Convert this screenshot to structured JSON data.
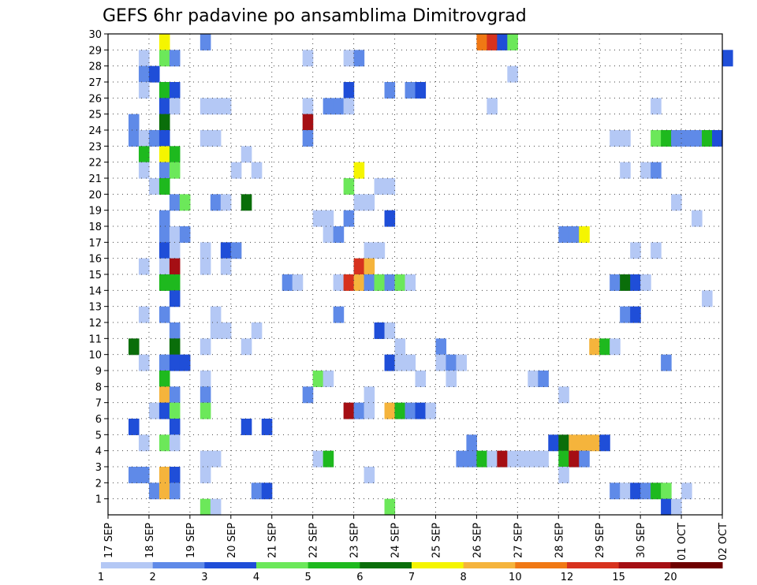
{
  "chart_data": {
    "type": "heatmap",
    "title": "GEFS 6hr padavine po ansamblima Dimitrovgrad",
    "xlabel": "",
    "ylabel": "",
    "x_ticks": [
      "17 SEP",
      "18 SEP",
      "19 SEP",
      "20 SEP",
      "21 SEP",
      "22 SEP",
      "23 SEP",
      "24 SEP",
      "25 SEP",
      "26 SEP",
      "27 SEP",
      "28 SEP",
      "29 SEP",
      "30 SEP",
      "01 OCT",
      "02 OCT"
    ],
    "y_ticks": [
      "1",
      "2",
      "3",
      "4",
      "5",
      "6",
      "7",
      "8",
      "9",
      "10",
      "11",
      "12",
      "13",
      "14",
      "15",
      "16",
      "17",
      "18",
      "19",
      "20",
      "21",
      "22",
      "23",
      "24",
      "25",
      "26",
      "27",
      "28",
      "29",
      "30"
    ],
    "x_range_steps": [
      0,
      60
    ],
    "y_range_members": [
      0,
      30
    ],
    "grid": true,
    "colorbar": {
      "labels": [
        "1",
        "2",
        "3",
        "4",
        "5",
        "6",
        "7",
        "8",
        "10",
        "12",
        "15",
        "20"
      ],
      "colors": [
        "#b4c8f5",
        "#5f8ae8",
        "#1f4ed8",
        "#6ce85a",
        "#1eb91e",
        "#0a6e0a",
        "#f5f500",
        "#f5b43c",
        "#f07814",
        "#d7321e",
        "#a50f14",
        "#6e0000"
      ]
    },
    "cells": [
      [
        5,
        30,
        7
      ],
      [
        9,
        30,
        2
      ],
      [
        36,
        30,
        9
      ],
      [
        37,
        30,
        10
      ],
      [
        38,
        30,
        3
      ],
      [
        39,
        30,
        4
      ],
      [
        3,
        29,
        1
      ],
      [
        5,
        29,
        4
      ],
      [
        6,
        29,
        2
      ],
      [
        19,
        29,
        1
      ],
      [
        23,
        29,
        1
      ],
      [
        24,
        29,
        2
      ],
      [
        60,
        29,
        3
      ],
      [
        3,
        28,
        2
      ],
      [
        4,
        28,
        3
      ],
      [
        39,
        28,
        1
      ],
      [
        3,
        27,
        1
      ],
      [
        5,
        27,
        5
      ],
      [
        6,
        27,
        3
      ],
      [
        23,
        27,
        3
      ],
      [
        27,
        27,
        2
      ],
      [
        29,
        27,
        2
      ],
      [
        30,
        27,
        3
      ],
      [
        5,
        26,
        3
      ],
      [
        6,
        26,
        1
      ],
      [
        9,
        26,
        1
      ],
      [
        10,
        26,
        1
      ],
      [
        11,
        26,
        1
      ],
      [
        19,
        26,
        1
      ],
      [
        21,
        26,
        2
      ],
      [
        22,
        26,
        2
      ],
      [
        23,
        26,
        1
      ],
      [
        37,
        26,
        1
      ],
      [
        53,
        26,
        1
      ],
      [
        2,
        25,
        2
      ],
      [
        5,
        25,
        6
      ],
      [
        19,
        25,
        11
      ],
      [
        2,
        24,
        2
      ],
      [
        3,
        24,
        1
      ],
      [
        4,
        24,
        2
      ],
      [
        5,
        24,
        3
      ],
      [
        9,
        24,
        1
      ],
      [
        10,
        24,
        1
      ],
      [
        19,
        24,
        2
      ],
      [
        49,
        24,
        1
      ],
      [
        50,
        24,
        1
      ],
      [
        53,
        24,
        4
      ],
      [
        54,
        24,
        5
      ],
      [
        55,
        24,
        2
      ],
      [
        56,
        24,
        2
      ],
      [
        57,
        24,
        2
      ],
      [
        58,
        24,
        5
      ],
      [
        59,
        24,
        3
      ],
      [
        3,
        23,
        5
      ],
      [
        5,
        23,
        7
      ],
      [
        6,
        23,
        5
      ],
      [
        13,
        23,
        1
      ],
      [
        3,
        22,
        1
      ],
      [
        5,
        22,
        2
      ],
      [
        6,
        22,
        4
      ],
      [
        12,
        22,
        1
      ],
      [
        14,
        22,
        1
      ],
      [
        24,
        22,
        7
      ],
      [
        50,
        22,
        1
      ],
      [
        52,
        22,
        1
      ],
      [
        53,
        22,
        2
      ],
      [
        4,
        21,
        1
      ],
      [
        5,
        21,
        5
      ],
      [
        23,
        21,
        4
      ],
      [
        26,
        21,
        1
      ],
      [
        27,
        21,
        1
      ],
      [
        6,
        20,
        2
      ],
      [
        7,
        20,
        4
      ],
      [
        10,
        20,
        2
      ],
      [
        11,
        20,
        1
      ],
      [
        13,
        20,
        6
      ],
      [
        24,
        20,
        1
      ],
      [
        25,
        20,
        1
      ],
      [
        55,
        20,
        1
      ],
      [
        5,
        19,
        2
      ],
      [
        20,
        19,
        1
      ],
      [
        21,
        19,
        1
      ],
      [
        23,
        19,
        2
      ],
      [
        27,
        19,
        3
      ],
      [
        57,
        19,
        1
      ],
      [
        5,
        18,
        2
      ],
      [
        6,
        18,
        1
      ],
      [
        7,
        18,
        2
      ],
      [
        21,
        18,
        1
      ],
      [
        22,
        18,
        2
      ],
      [
        44,
        18,
        2
      ],
      [
        45,
        18,
        2
      ],
      [
        46,
        18,
        7
      ],
      [
        5,
        17,
        3
      ],
      [
        6,
        17,
        1
      ],
      [
        9,
        17,
        1
      ],
      [
        11,
        17,
        3
      ],
      [
        12,
        17,
        2
      ],
      [
        25,
        17,
        1
      ],
      [
        26,
        17,
        1
      ],
      [
        51,
        17,
        1
      ],
      [
        53,
        17,
        1
      ],
      [
        3,
        16,
        1
      ],
      [
        5,
        16,
        1
      ],
      [
        6,
        16,
        11
      ],
      [
        9,
        16,
        1
      ],
      [
        11,
        16,
        1
      ],
      [
        24,
        16,
        10
      ],
      [
        25,
        16,
        8
      ],
      [
        5,
        15,
        5
      ],
      [
        6,
        15,
        5
      ],
      [
        17,
        15,
        2
      ],
      [
        18,
        15,
        1
      ],
      [
        22,
        15,
        1
      ],
      [
        23,
        15,
        10
      ],
      [
        24,
        15,
        8
      ],
      [
        25,
        15,
        2
      ],
      [
        26,
        15,
        4
      ],
      [
        27,
        15,
        2
      ],
      [
        28,
        15,
        4
      ],
      [
        29,
        15,
        1
      ],
      [
        49,
        15,
        2
      ],
      [
        50,
        15,
        6
      ],
      [
        51,
        15,
        3
      ],
      [
        52,
        15,
        1
      ],
      [
        6,
        14,
        3
      ],
      [
        58,
        14,
        1
      ],
      [
        3,
        13,
        1
      ],
      [
        5,
        13,
        2
      ],
      [
        10,
        13,
        1
      ],
      [
        22,
        13,
        2
      ],
      [
        50,
        13,
        2
      ],
      [
        51,
        13,
        3
      ],
      [
        6,
        12,
        2
      ],
      [
        10,
        12,
        1
      ],
      [
        11,
        12,
        1
      ],
      [
        14,
        12,
        1
      ],
      [
        26,
        12,
        3
      ],
      [
        27,
        12,
        1
      ],
      [
        2,
        11,
        6
      ],
      [
        6,
        11,
        6
      ],
      [
        9,
        11,
        1
      ],
      [
        13,
        11,
        1
      ],
      [
        28,
        11,
        1
      ],
      [
        32,
        11,
        2
      ],
      [
        47,
        11,
        8
      ],
      [
        48,
        11,
        5
      ],
      [
        49,
        11,
        1
      ],
      [
        3,
        10,
        1
      ],
      [
        5,
        10,
        2
      ],
      [
        6,
        10,
        3
      ],
      [
        7,
        10,
        3
      ],
      [
        27,
        10,
        3
      ],
      [
        28,
        10,
        1
      ],
      [
        29,
        10,
        1
      ],
      [
        32,
        10,
        1
      ],
      [
        33,
        10,
        2
      ],
      [
        34,
        10,
        1
      ],
      [
        54,
        10,
        2
      ],
      [
        5,
        9,
        5
      ],
      [
        9,
        9,
        1
      ],
      [
        20,
        9,
        4
      ],
      [
        21,
        9,
        1
      ],
      [
        30,
        9,
        1
      ],
      [
        33,
        9,
        1
      ],
      [
        41,
        9,
        1
      ],
      [
        42,
        9,
        2
      ],
      [
        5,
        8,
        8
      ],
      [
        6,
        8,
        2
      ],
      [
        9,
        8,
        2
      ],
      [
        19,
        8,
        2
      ],
      [
        25,
        8,
        1
      ],
      [
        44,
        8,
        1
      ],
      [
        4,
        7,
        1
      ],
      [
        5,
        7,
        3
      ],
      [
        6,
        7,
        4
      ],
      [
        9,
        7,
        4
      ],
      [
        23,
        7,
        11
      ],
      [
        24,
        7,
        2
      ],
      [
        25,
        7,
        1
      ],
      [
        27,
        7,
        8
      ],
      [
        28,
        7,
        5
      ],
      [
        29,
        7,
        2
      ],
      [
        30,
        7,
        3
      ],
      [
        31,
        7,
        1
      ],
      [
        2,
        6,
        3
      ],
      [
        6,
        6,
        3
      ],
      [
        13,
        6,
        3
      ],
      [
        15,
        6,
        3
      ],
      [
        3,
        5,
        1
      ],
      [
        5,
        5,
        4
      ],
      [
        6,
        5,
        1
      ],
      [
        35,
        5,
        2
      ],
      [
        43,
        5,
        3
      ],
      [
        44,
        5,
        6
      ],
      [
        45,
        5,
        8
      ],
      [
        46,
        5,
        8
      ],
      [
        47,
        5,
        8
      ],
      [
        48,
        5,
        3
      ],
      [
        9,
        4,
        1
      ],
      [
        10,
        4,
        1
      ],
      [
        20,
        4,
        1
      ],
      [
        21,
        4,
        5
      ],
      [
        34,
        4,
        2
      ],
      [
        35,
        4,
        2
      ],
      [
        36,
        4,
        5
      ],
      [
        37,
        4,
        1
      ],
      [
        38,
        4,
        11
      ],
      [
        39,
        4,
        1
      ],
      [
        40,
        4,
        1
      ],
      [
        41,
        4,
        1
      ],
      [
        42,
        4,
        1
      ],
      [
        44,
        4,
        5
      ],
      [
        45,
        4,
        11
      ],
      [
        46,
        4,
        2
      ],
      [
        2,
        3,
        2
      ],
      [
        3,
        3,
        2
      ],
      [
        5,
        3,
        8
      ],
      [
        6,
        3,
        3
      ],
      [
        9,
        3,
        1
      ],
      [
        25,
        3,
        1
      ],
      [
        44,
        3,
        1
      ],
      [
        4,
        2,
        2
      ],
      [
        5,
        2,
        8
      ],
      [
        6,
        2,
        2
      ],
      [
        14,
        2,
        2
      ],
      [
        15,
        2,
        3
      ],
      [
        49,
        2,
        2
      ],
      [
        50,
        2,
        1
      ],
      [
        51,
        2,
        3
      ],
      [
        52,
        2,
        2
      ],
      [
        53,
        2,
        5
      ],
      [
        54,
        2,
        4
      ],
      [
        56,
        2,
        1
      ],
      [
        9,
        1,
        4
      ],
      [
        10,
        1,
        1
      ],
      [
        27,
        1,
        4
      ],
      [
        54,
        1,
        3
      ],
      [
        55,
        1,
        1
      ]
    ]
  }
}
